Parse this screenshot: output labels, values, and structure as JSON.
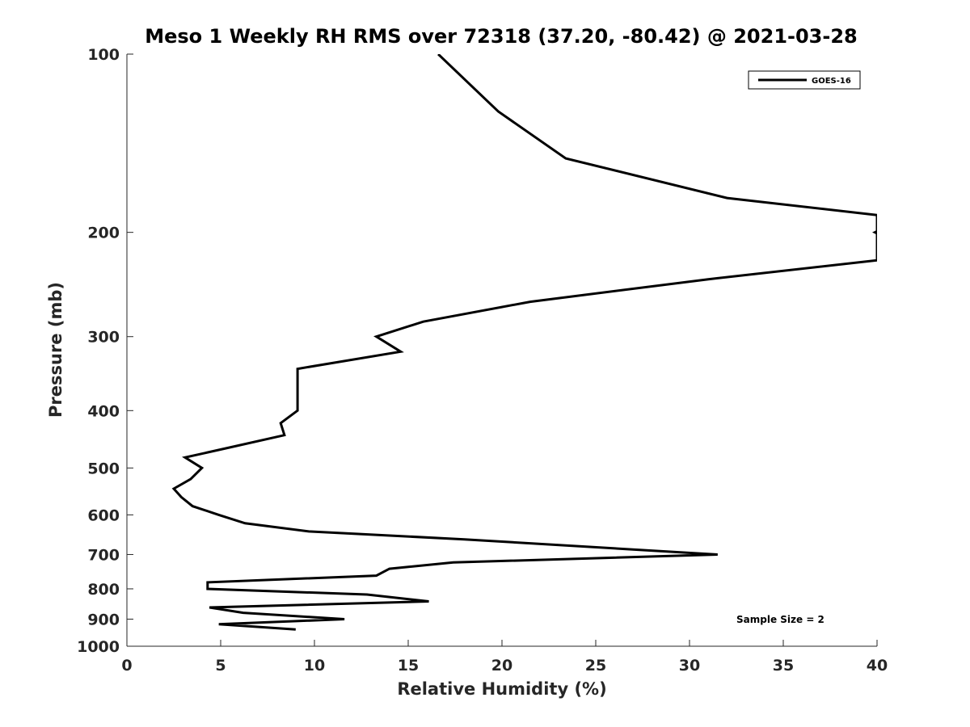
{
  "chart_data": {
    "type": "line",
    "title": "Meso 1 Weekly RH RMS over 72318 (37.20, -80.42) @ 2021-03-28",
    "xlabel": "Relative Humidity (%)",
    "ylabel": "Pressure (mb)",
    "xlim": [
      0,
      40
    ],
    "ylim": [
      100,
      1000
    ],
    "y_scale": "log",
    "y_reversed": true,
    "grid": false,
    "legend_position": "top-right",
    "x_ticks": [
      0,
      5,
      10,
      15,
      20,
      25,
      30,
      35,
      40
    ],
    "y_ticks": [
      100,
      200,
      300,
      400,
      500,
      600,
      700,
      800,
      900,
      1000
    ],
    "series": [
      {
        "name": "GOES-16",
        "color": "#000000",
        "points": [
          [
            16.6,
            100
          ],
          [
            19.8,
            125
          ],
          [
            23.4,
            150
          ],
          [
            32.0,
            175
          ],
          [
            40.0,
            187
          ],
          [
            40.0,
            223
          ],
          [
            31.0,
            240
          ],
          [
            21.5,
            262
          ],
          [
            15.8,
            283
          ],
          [
            13.3,
            300
          ],
          [
            14.6,
            318
          ],
          [
            9.1,
            340
          ],
          [
            9.1,
            367
          ],
          [
            9.1,
            400
          ],
          [
            8.2,
            420
          ],
          [
            8.4,
            440
          ],
          [
            5.3,
            463
          ],
          [
            3.1,
            480
          ],
          [
            4.0,
            500
          ],
          [
            3.4,
            522
          ],
          [
            2.5,
            542
          ],
          [
            2.9,
            560
          ],
          [
            3.5,
            580
          ],
          [
            4.9,
            600
          ],
          [
            6.3,
            620
          ],
          [
            9.7,
            640
          ],
          [
            18.0,
            660
          ],
          [
            31.5,
            700
          ],
          [
            17.4,
            722
          ],
          [
            14.0,
            740
          ],
          [
            13.3,
            760
          ],
          [
            4.3,
            780
          ],
          [
            4.3,
            800
          ],
          [
            12.8,
            818
          ],
          [
            16.1,
            840
          ],
          [
            4.4,
            860
          ],
          [
            6.2,
            878
          ],
          [
            11.6,
            900
          ],
          [
            4.9,
            918
          ],
          [
            9.0,
            937
          ]
        ]
      }
    ],
    "annotations": [
      "Sample Size = 2"
    ]
  }
}
